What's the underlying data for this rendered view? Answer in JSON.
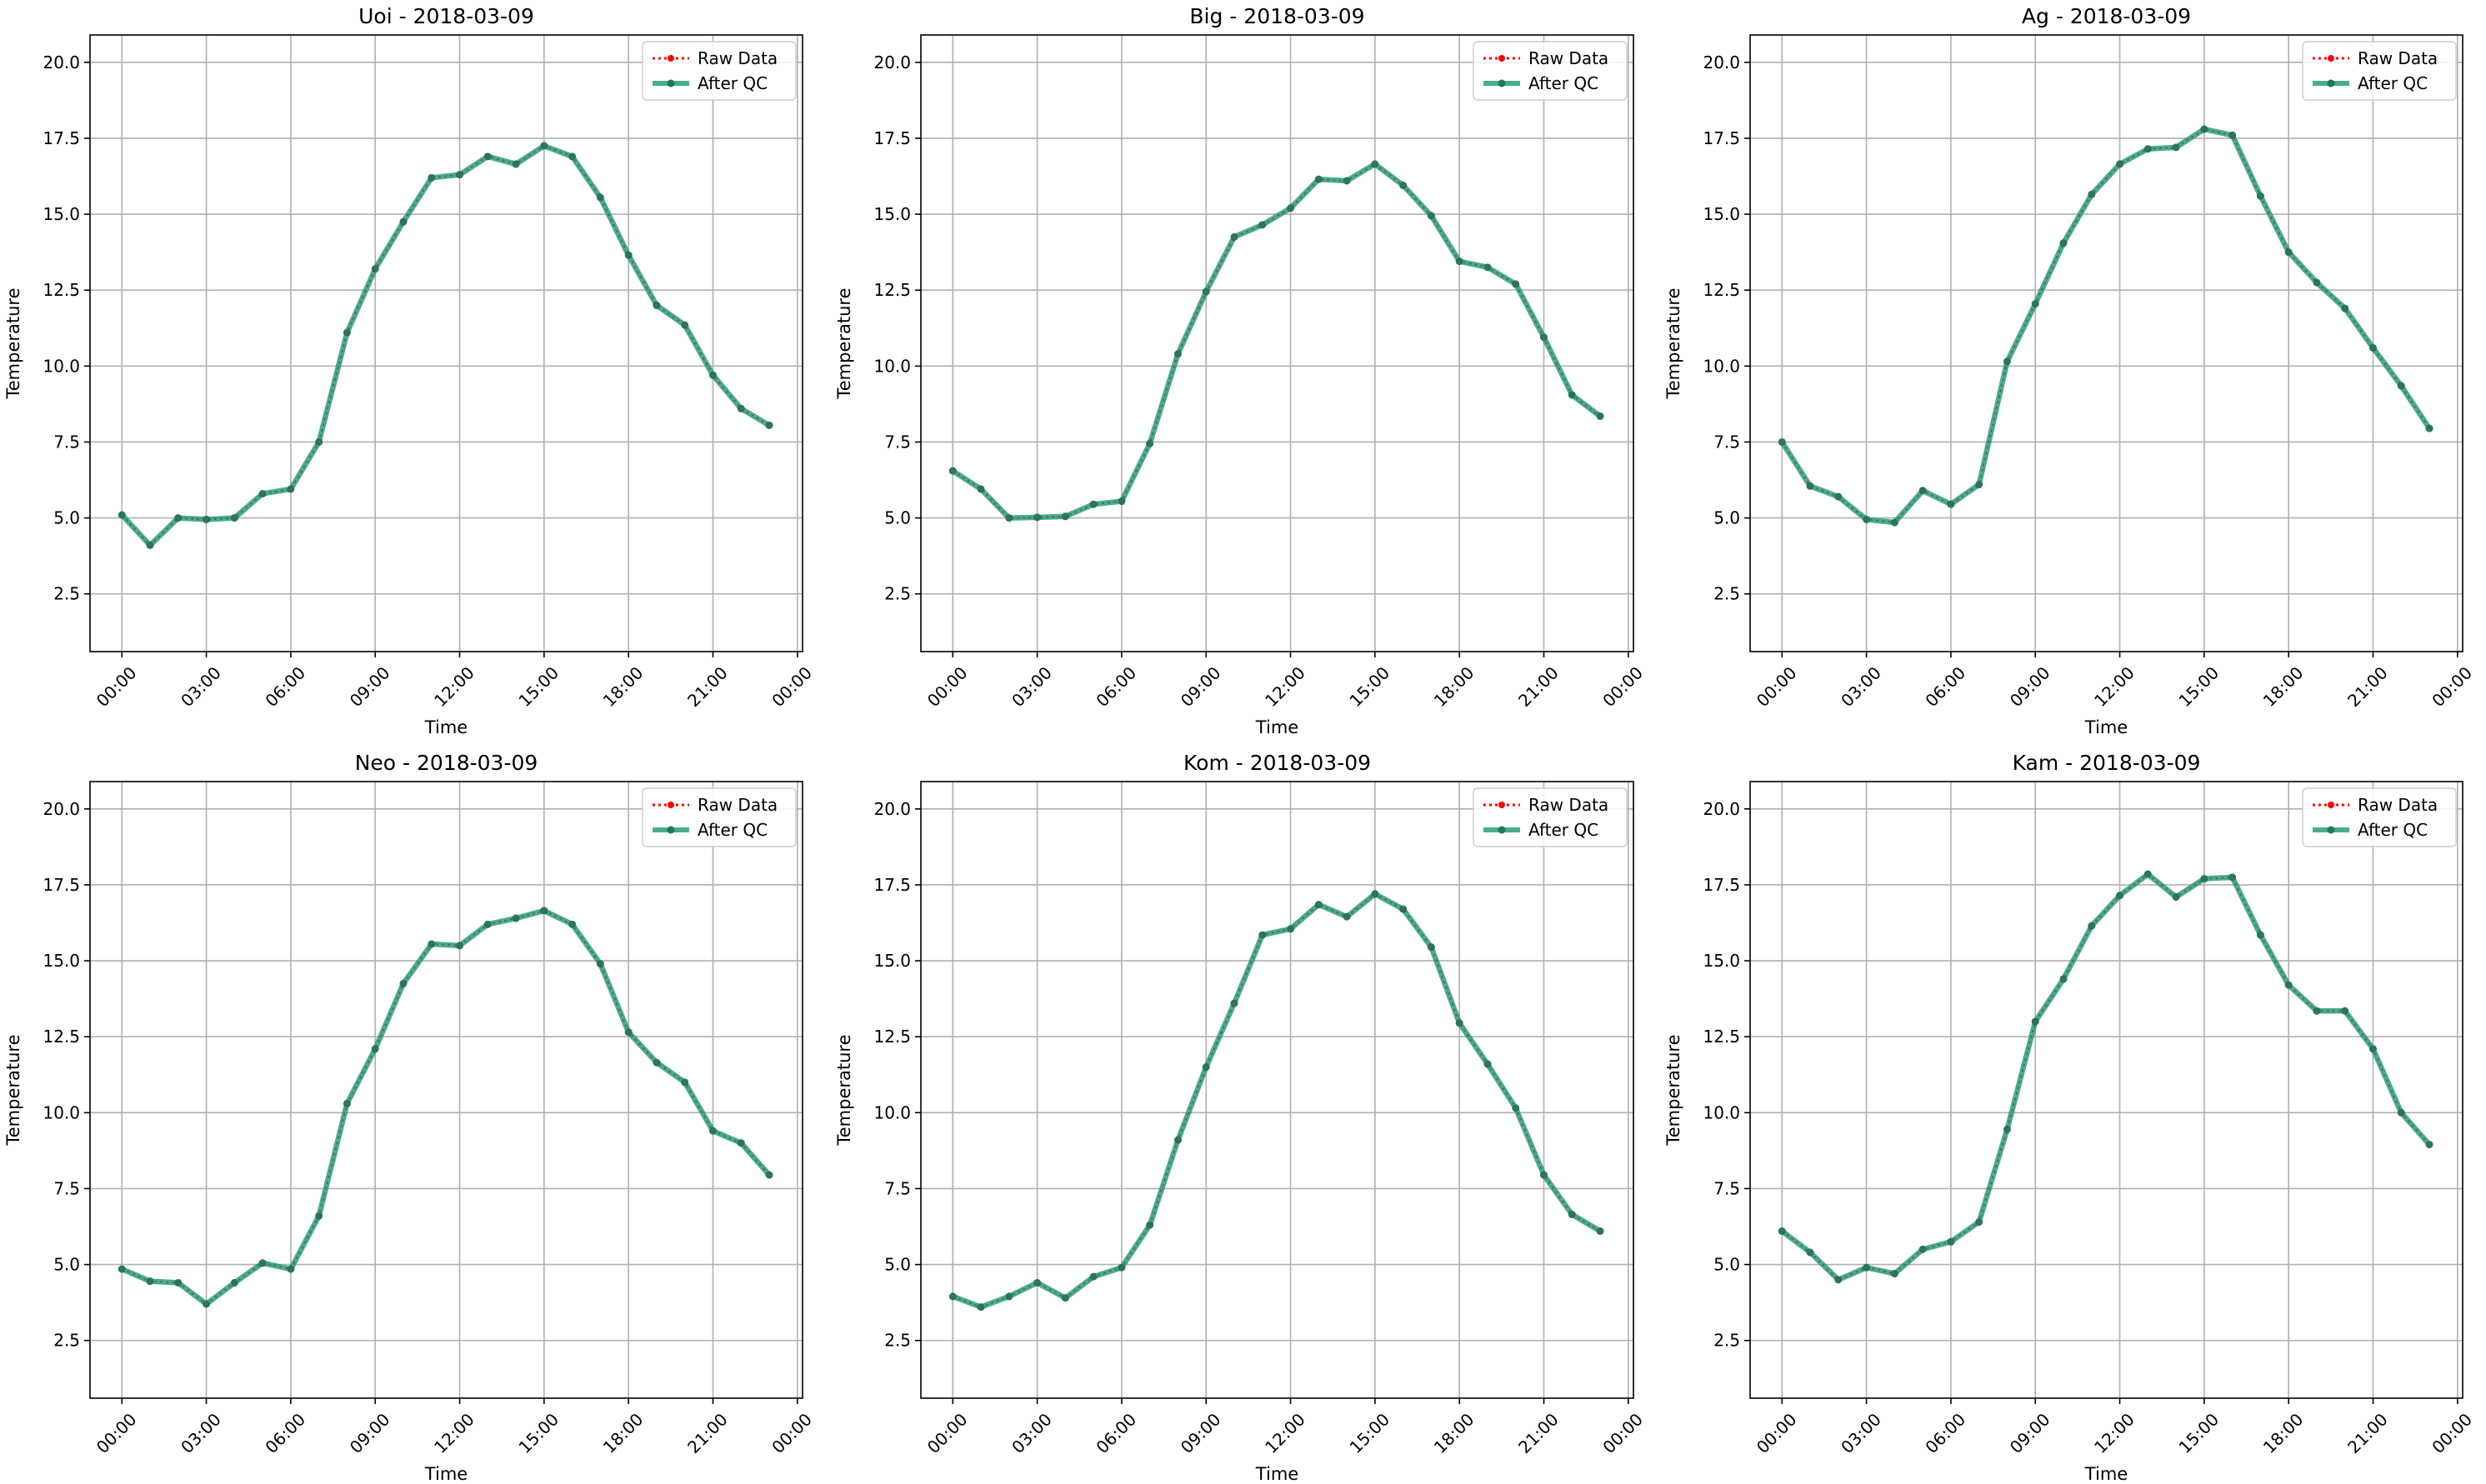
{
  "figure": {
    "x_tick_labels": [
      "00:00",
      "03:00",
      "06:00",
      "09:00",
      "12:00",
      "15:00",
      "18:00",
      "21:00",
      "00:00"
    ],
    "y_tick_labels": [
      "2.5",
      "5.0",
      "7.5",
      "10.0",
      "12.5",
      "15.0",
      "17.5",
      "20.0"
    ],
    "legend": {
      "raw_label": "Raw Data",
      "qc_label": "After QC"
    },
    "colors": {
      "raw": "#ff0000",
      "qc": "#2a9d78",
      "grid": "#b0b0b0",
      "axes": "#000000"
    }
  },
  "chart_data": [
    {
      "type": "line",
      "title": "Uoi - 2018-03-09",
      "xlabel": "Time",
      "ylabel": "Temperature",
      "xlim": [
        "2018-03-08T22:52",
        "2018-03-10T00:11"
      ],
      "ylim": [
        0.6,
        20.9
      ],
      "grid": true,
      "legend_position": "top-right",
      "x": [
        "00:00",
        "01:00",
        "02:00",
        "03:00",
        "04:00",
        "05:00",
        "06:00",
        "07:00",
        "08:00",
        "09:00",
        "10:00",
        "11:00",
        "12:00",
        "13:00",
        "14:00",
        "15:00",
        "16:00",
        "17:00",
        "18:00",
        "19:00",
        "20:00",
        "21:00",
        "22:00",
        "23:00"
      ],
      "series": [
        {
          "name": "Raw Data",
          "values": [
            5.1,
            4.1,
            5.0,
            4.95,
            5.0,
            5.8,
            5.95,
            7.5,
            11.1,
            13.2,
            14.75,
            16.2,
            16.3,
            16.9,
            16.65,
            17.25,
            16.9,
            15.55,
            13.65,
            12.0,
            11.35,
            9.7,
            8.6,
            8.05
          ]
        },
        {
          "name": "After QC",
          "values": [
            5.1,
            4.1,
            5.0,
            4.95,
            5.0,
            5.8,
            5.95,
            7.5,
            11.1,
            13.2,
            14.75,
            16.2,
            16.3,
            16.9,
            16.65,
            17.25,
            16.9,
            15.55,
            13.65,
            12.0,
            11.35,
            9.7,
            8.6,
            8.05
          ]
        }
      ]
    },
    {
      "type": "line",
      "title": "Big - 2018-03-09",
      "xlabel": "Time",
      "ylabel": "Temperature",
      "xlim": [
        "2018-03-08T22:52",
        "2018-03-10T00:11"
      ],
      "ylim": [
        0.6,
        20.9
      ],
      "grid": true,
      "legend_position": "top-right",
      "x": [
        "00:00",
        "01:00",
        "02:00",
        "03:00",
        "04:00",
        "05:00",
        "06:00",
        "07:00",
        "08:00",
        "09:00",
        "10:00",
        "11:00",
        "12:00",
        "13:00",
        "14:00",
        "15:00",
        "16:00",
        "17:00",
        "18:00",
        "19:00",
        "20:00",
        "21:00",
        "22:00",
        "23:00"
      ],
      "series": [
        {
          "name": "Raw Data",
          "values": [
            6.55,
            5.95,
            5.0,
            5.02,
            5.05,
            5.45,
            5.55,
            7.45,
            10.4,
            12.45,
            14.25,
            14.65,
            15.2,
            16.15,
            16.1,
            16.65,
            15.95,
            14.95,
            13.45,
            13.25,
            12.7,
            10.95,
            9.05,
            8.35
          ]
        },
        {
          "name": "After QC",
          "values": [
            6.55,
            5.95,
            5.0,
            5.02,
            5.05,
            5.45,
            5.55,
            7.45,
            10.4,
            12.45,
            14.25,
            14.65,
            15.2,
            16.15,
            16.1,
            16.65,
            15.95,
            14.95,
            13.45,
            13.25,
            12.7,
            10.95,
            9.05,
            8.35
          ]
        }
      ]
    },
    {
      "type": "line",
      "title": "Ag - 2018-03-09",
      "xlabel": "Time",
      "ylabel": "Temperature",
      "xlim": [
        "2018-03-08T22:52",
        "2018-03-10T00:11"
      ],
      "ylim": [
        0.6,
        20.9
      ],
      "grid": true,
      "legend_position": "top-right",
      "x": [
        "00:00",
        "01:00",
        "02:00",
        "03:00",
        "04:00",
        "05:00",
        "06:00",
        "07:00",
        "08:00",
        "09:00",
        "10:00",
        "11:00",
        "12:00",
        "13:00",
        "14:00",
        "15:00",
        "16:00",
        "17:00",
        "18:00",
        "19:00",
        "20:00",
        "21:00",
        "22:00",
        "23:00"
      ],
      "series": [
        {
          "name": "Raw Data",
          "values": [
            7.5,
            6.05,
            5.7,
            4.95,
            4.85,
            5.9,
            5.45,
            6.1,
            10.15,
            12.05,
            14.05,
            15.65,
            16.65,
            17.15,
            17.2,
            17.8,
            17.6,
            15.6,
            13.75,
            12.75,
            11.9,
            10.6,
            9.35,
            7.95
          ]
        },
        {
          "name": "After QC",
          "values": [
            7.5,
            6.05,
            5.7,
            4.95,
            4.85,
            5.9,
            5.45,
            6.1,
            10.15,
            12.05,
            14.05,
            15.65,
            16.65,
            17.15,
            17.2,
            17.8,
            17.6,
            15.6,
            13.75,
            12.75,
            11.9,
            10.6,
            9.35,
            7.95
          ]
        }
      ]
    },
    {
      "type": "line",
      "title": "Neo - 2018-03-09",
      "xlabel": "Time",
      "ylabel": "Temperature",
      "xlim": [
        "2018-03-08T22:52",
        "2018-03-10T00:11"
      ],
      "ylim": [
        0.6,
        20.9
      ],
      "grid": true,
      "legend_position": "top-right",
      "x": [
        "00:00",
        "01:00",
        "02:00",
        "03:00",
        "04:00",
        "05:00",
        "06:00",
        "07:00",
        "08:00",
        "09:00",
        "10:00",
        "11:00",
        "12:00",
        "13:00",
        "14:00",
        "15:00",
        "16:00",
        "17:00",
        "18:00",
        "19:00",
        "20:00",
        "21:00",
        "22:00",
        "23:00"
      ],
      "series": [
        {
          "name": "Raw Data",
          "values": [
            4.85,
            4.45,
            4.4,
            3.7,
            4.4,
            5.05,
            4.85,
            6.6,
            10.3,
            12.1,
            14.25,
            15.55,
            15.5,
            16.2,
            16.4,
            16.65,
            16.2,
            14.9,
            12.65,
            11.65,
            11.0,
            9.4,
            9.0,
            7.95
          ]
        },
        {
          "name": "After QC",
          "values": [
            4.85,
            4.45,
            4.4,
            3.7,
            4.4,
            5.05,
            4.85,
            6.6,
            10.3,
            12.1,
            14.25,
            15.55,
            15.5,
            16.2,
            16.4,
            16.65,
            16.2,
            14.9,
            12.65,
            11.65,
            11.0,
            9.4,
            9.0,
            7.95
          ]
        }
      ]
    },
    {
      "type": "line",
      "title": "Kom - 2018-03-09",
      "xlabel": "Time",
      "ylabel": "Temperature",
      "xlim": [
        "2018-03-08T22:52",
        "2018-03-10T00:11"
      ],
      "ylim": [
        0.6,
        20.9
      ],
      "grid": true,
      "legend_position": "top-right",
      "x": [
        "00:00",
        "01:00",
        "02:00",
        "03:00",
        "04:00",
        "05:00",
        "06:00",
        "07:00",
        "08:00",
        "09:00",
        "10:00",
        "11:00",
        "12:00",
        "13:00",
        "14:00",
        "15:00",
        "16:00",
        "17:00",
        "18:00",
        "19:00",
        "20:00",
        "21:00",
        "22:00",
        "23:00"
      ],
      "series": [
        {
          "name": "Raw Data",
          "values": [
            3.95,
            3.6,
            3.95,
            4.4,
            3.9,
            4.6,
            4.9,
            6.3,
            9.1,
            11.5,
            13.6,
            15.85,
            16.05,
            16.85,
            16.45,
            17.2,
            16.7,
            15.45,
            12.95,
            11.6,
            10.15,
            7.95,
            6.65,
            6.1
          ]
        },
        {
          "name": "After QC",
          "values": [
            3.95,
            3.6,
            3.95,
            4.4,
            3.9,
            4.6,
            4.9,
            6.3,
            9.1,
            11.5,
            13.6,
            15.85,
            16.05,
            16.85,
            16.45,
            17.2,
            16.7,
            15.45,
            12.95,
            11.6,
            10.15,
            7.95,
            6.65,
            6.1
          ]
        }
      ]
    },
    {
      "type": "line",
      "title": "Kam - 2018-03-09",
      "xlabel": "Time",
      "ylabel": "Temperature",
      "xlim": [
        "2018-03-08T22:52",
        "2018-03-10T00:11"
      ],
      "ylim": [
        0.6,
        20.9
      ],
      "grid": true,
      "legend_position": "top-right",
      "x": [
        "00:00",
        "01:00",
        "02:00",
        "03:00",
        "04:00",
        "05:00",
        "06:00",
        "07:00",
        "08:00",
        "09:00",
        "10:00",
        "11:00",
        "12:00",
        "13:00",
        "14:00",
        "15:00",
        "16:00",
        "17:00",
        "18:00",
        "19:00",
        "20:00",
        "21:00",
        "22:00",
        "23:00"
      ],
      "series": [
        {
          "name": "Raw Data",
          "values": [
            6.1,
            5.4,
            4.5,
            4.9,
            4.7,
            5.5,
            5.75,
            6.4,
            9.45,
            13.0,
            14.4,
            16.15,
            17.15,
            17.85,
            17.1,
            17.7,
            17.75,
            15.85,
            14.2,
            13.35,
            13.35,
            12.1,
            10.0,
            8.95
          ]
        },
        {
          "name": "After QC",
          "values": [
            6.1,
            5.4,
            4.5,
            4.9,
            4.7,
            5.5,
            5.75,
            6.4,
            9.45,
            13.0,
            14.4,
            16.15,
            17.15,
            17.85,
            17.1,
            17.7,
            17.75,
            15.85,
            14.2,
            13.35,
            13.35,
            12.1,
            10.0,
            8.95
          ]
        }
      ]
    }
  ]
}
